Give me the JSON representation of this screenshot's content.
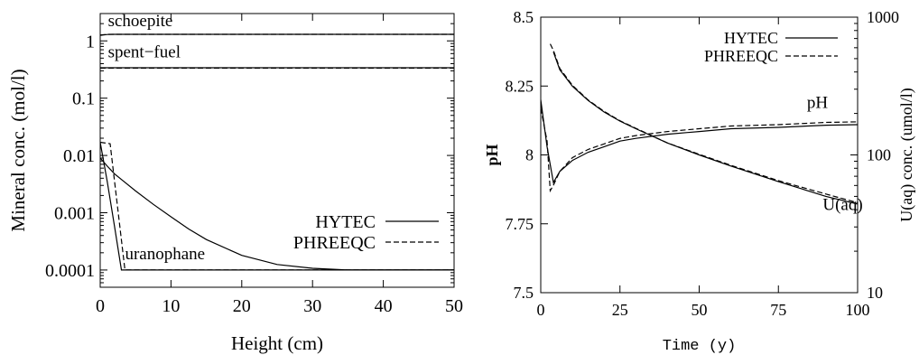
{
  "chart_data": [
    {
      "type": "line",
      "xlabel": "Height (cm)",
      "ylabel": "Mineral conc. (mol/l)",
      "xlim": [
        0,
        50
      ],
      "ylim": [
        5e-05,
        3
      ],
      "yscale": "log",
      "xticks": [
        0,
        10,
        20,
        30,
        40,
        50
      ],
      "yticks": [
        {
          "value": 1,
          "label": "1"
        },
        {
          "value": 0.1,
          "label": "0.1"
        },
        {
          "value": 0.01,
          "label": "0.01"
        },
        {
          "value": 0.001,
          "label": "0.001"
        },
        {
          "value": 0.0001,
          "label": "0.0001"
        }
      ],
      "legend": {
        "position": "right",
        "entries": [
          "HYTEC",
          "PHREEQC"
        ]
      },
      "annotations": [
        {
          "text": "schoepite",
          "x": 1.1,
          "y": 1.8
        },
        {
          "text": "spent−fuel",
          "x": 1.1,
          "y": 0.52
        },
        {
          "text": "uranophane",
          "x": 3.5,
          "y": 0.000155
        }
      ],
      "series": [
        {
          "name": "HYTEC",
          "style": "solid",
          "group": "schoepite",
          "x": [
            0,
            1,
            2,
            5,
            10,
            20,
            30,
            40,
            50
          ],
          "y": [
            1.25,
            1.29,
            1.3,
            1.3,
            1.3,
            1.3,
            1.3,
            1.3,
            1.3
          ]
        },
        {
          "name": "PHREEQC",
          "style": "dashed",
          "group": "schoepite",
          "x": [
            0,
            1,
            2,
            5,
            10,
            20,
            30,
            40,
            50
          ],
          "y": [
            1.27,
            1.3,
            1.3,
            1.3,
            1.3,
            1.3,
            1.3,
            1.3,
            1.3
          ]
        },
        {
          "name": "HYTEC",
          "style": "solid",
          "group": "spent-fuel",
          "x": [
            0,
            10,
            20,
            30,
            40,
            50
          ],
          "y": [
            0.34,
            0.34,
            0.34,
            0.34,
            0.34,
            0.34
          ]
        },
        {
          "name": "PHREEQC",
          "style": "dashed",
          "group": "spent-fuel",
          "x": [
            0,
            10,
            20,
            30,
            40,
            50
          ],
          "y": [
            0.335,
            0.335,
            0.335,
            0.335,
            0.335,
            0.335
          ]
        },
        {
          "name": "HYTEC",
          "style": "solid",
          "group": "uranophane",
          "x": [
            0,
            1,
            2,
            3,
            5,
            7.5,
            10,
            12.5,
            15,
            20,
            25,
            30,
            35,
            40,
            45,
            50
          ],
          "y": [
            0.009,
            0.0065,
            0.0048,
            0.0038,
            0.0024,
            0.0014,
            0.00085,
            0.00052,
            0.00034,
            0.00018,
            0.000125,
            0.000107,
            0.0001,
            0.0001,
            0.0001,
            0.0001
          ]
        },
        {
          "name": "HYTEC",
          "style": "solid",
          "group": "uranophane",
          "x": [
            0,
            1,
            2,
            3,
            5,
            10,
            20,
            30,
            40,
            50
          ],
          "y": [
            0.017,
            0.0035,
            0.0006,
            0.0001,
            0.0001,
            0.0001,
            0.0001,
            0.0001,
            0.0001,
            0.0001
          ]
        },
        {
          "name": "PHREEQC",
          "style": "dashed",
          "group": "uranophane",
          "x": [
            0,
            1.4,
            3.5,
            5,
            10,
            20,
            30,
            40,
            50
          ],
          "y": [
            0.017,
            0.016,
            0.0001,
            0.0001,
            0.0001,
            0.0001,
            0.0001,
            0.0001,
            0.0001
          ]
        }
      ]
    },
    {
      "type": "line",
      "xlabel": "Time (y)",
      "ylabel": "pH",
      "y2label": "U(aq) conc. (umol/l)",
      "xlim": [
        0,
        100
      ],
      "ylim": [
        7.5,
        8.5
      ],
      "y2lim": [
        10,
        1000
      ],
      "y2scale": "log",
      "xticks": [
        0,
        25,
        50,
        75,
        100
      ],
      "yticks": [
        "7.5",
        "7.75",
        "8",
        "8.25",
        "8.5"
      ],
      "y2ticks": [
        {
          "value": 10,
          "label": "10"
        },
        {
          "value": 100,
          "label": "100"
        },
        {
          "value": 1000,
          "label": "1000"
        }
      ],
      "legend": {
        "position": "top-right",
        "entries": [
          "HYTEC",
          "PHREEQC"
        ]
      },
      "annotations": [
        {
          "text": "pH",
          "x": 84,
          "y": 8.17,
          "axis": "left"
        },
        {
          "text": "U(aq)",
          "x": 89,
          "y": 7.8,
          "axis": "left"
        }
      ],
      "series": [
        {
          "name": "HYTEC",
          "style": "solid",
          "group": "pH",
          "axis": "left",
          "x": [
            0,
            2,
            4,
            6,
            10,
            15,
            20,
            25,
            30,
            40,
            50,
            60,
            75,
            90,
            100
          ],
          "y": [
            8.2,
            8.03,
            7.9,
            7.94,
            7.98,
            8.01,
            8.03,
            8.05,
            8.06,
            8.075,
            8.085,
            8.095,
            8.1,
            8.108,
            8.11
          ]
        },
        {
          "name": "PHREEQC",
          "style": "dashed",
          "group": "pH",
          "axis": "left",
          "x": [
            0,
            2,
            3,
            4,
            6,
            10,
            15,
            20,
            25,
            30,
            40,
            50,
            60,
            75,
            90,
            100
          ],
          "y": [
            8.17,
            8.05,
            7.87,
            7.89,
            7.94,
            7.99,
            8.02,
            8.04,
            8.06,
            8.07,
            8.085,
            8.095,
            8.105,
            8.11,
            8.118,
            8.12
          ]
        },
        {
          "name": "HYTEC",
          "style": "solid",
          "group": "U(aq)",
          "axis": "right",
          "x": [
            4,
            6,
            10,
            15,
            20,
            25,
            30,
            40,
            50,
            60,
            75,
            90,
            100
          ],
          "y": [
            560,
            415,
            315,
            248,
            205,
            176,
            155,
            122,
            100,
            83,
            64,
            50,
            44
          ]
        },
        {
          "name": "PHREEQC",
          "style": "dashed",
          "group": "U(aq)",
          "axis": "right",
          "x": [
            3,
            4,
            6,
            10,
            15,
            20,
            25,
            30,
            40,
            50,
            60,
            75,
            90,
            100
          ],
          "y": [
            640,
            575,
            425,
            320,
            250,
            207,
            177,
            156,
            122,
            101,
            84,
            65,
            52,
            45
          ]
        }
      ]
    }
  ]
}
